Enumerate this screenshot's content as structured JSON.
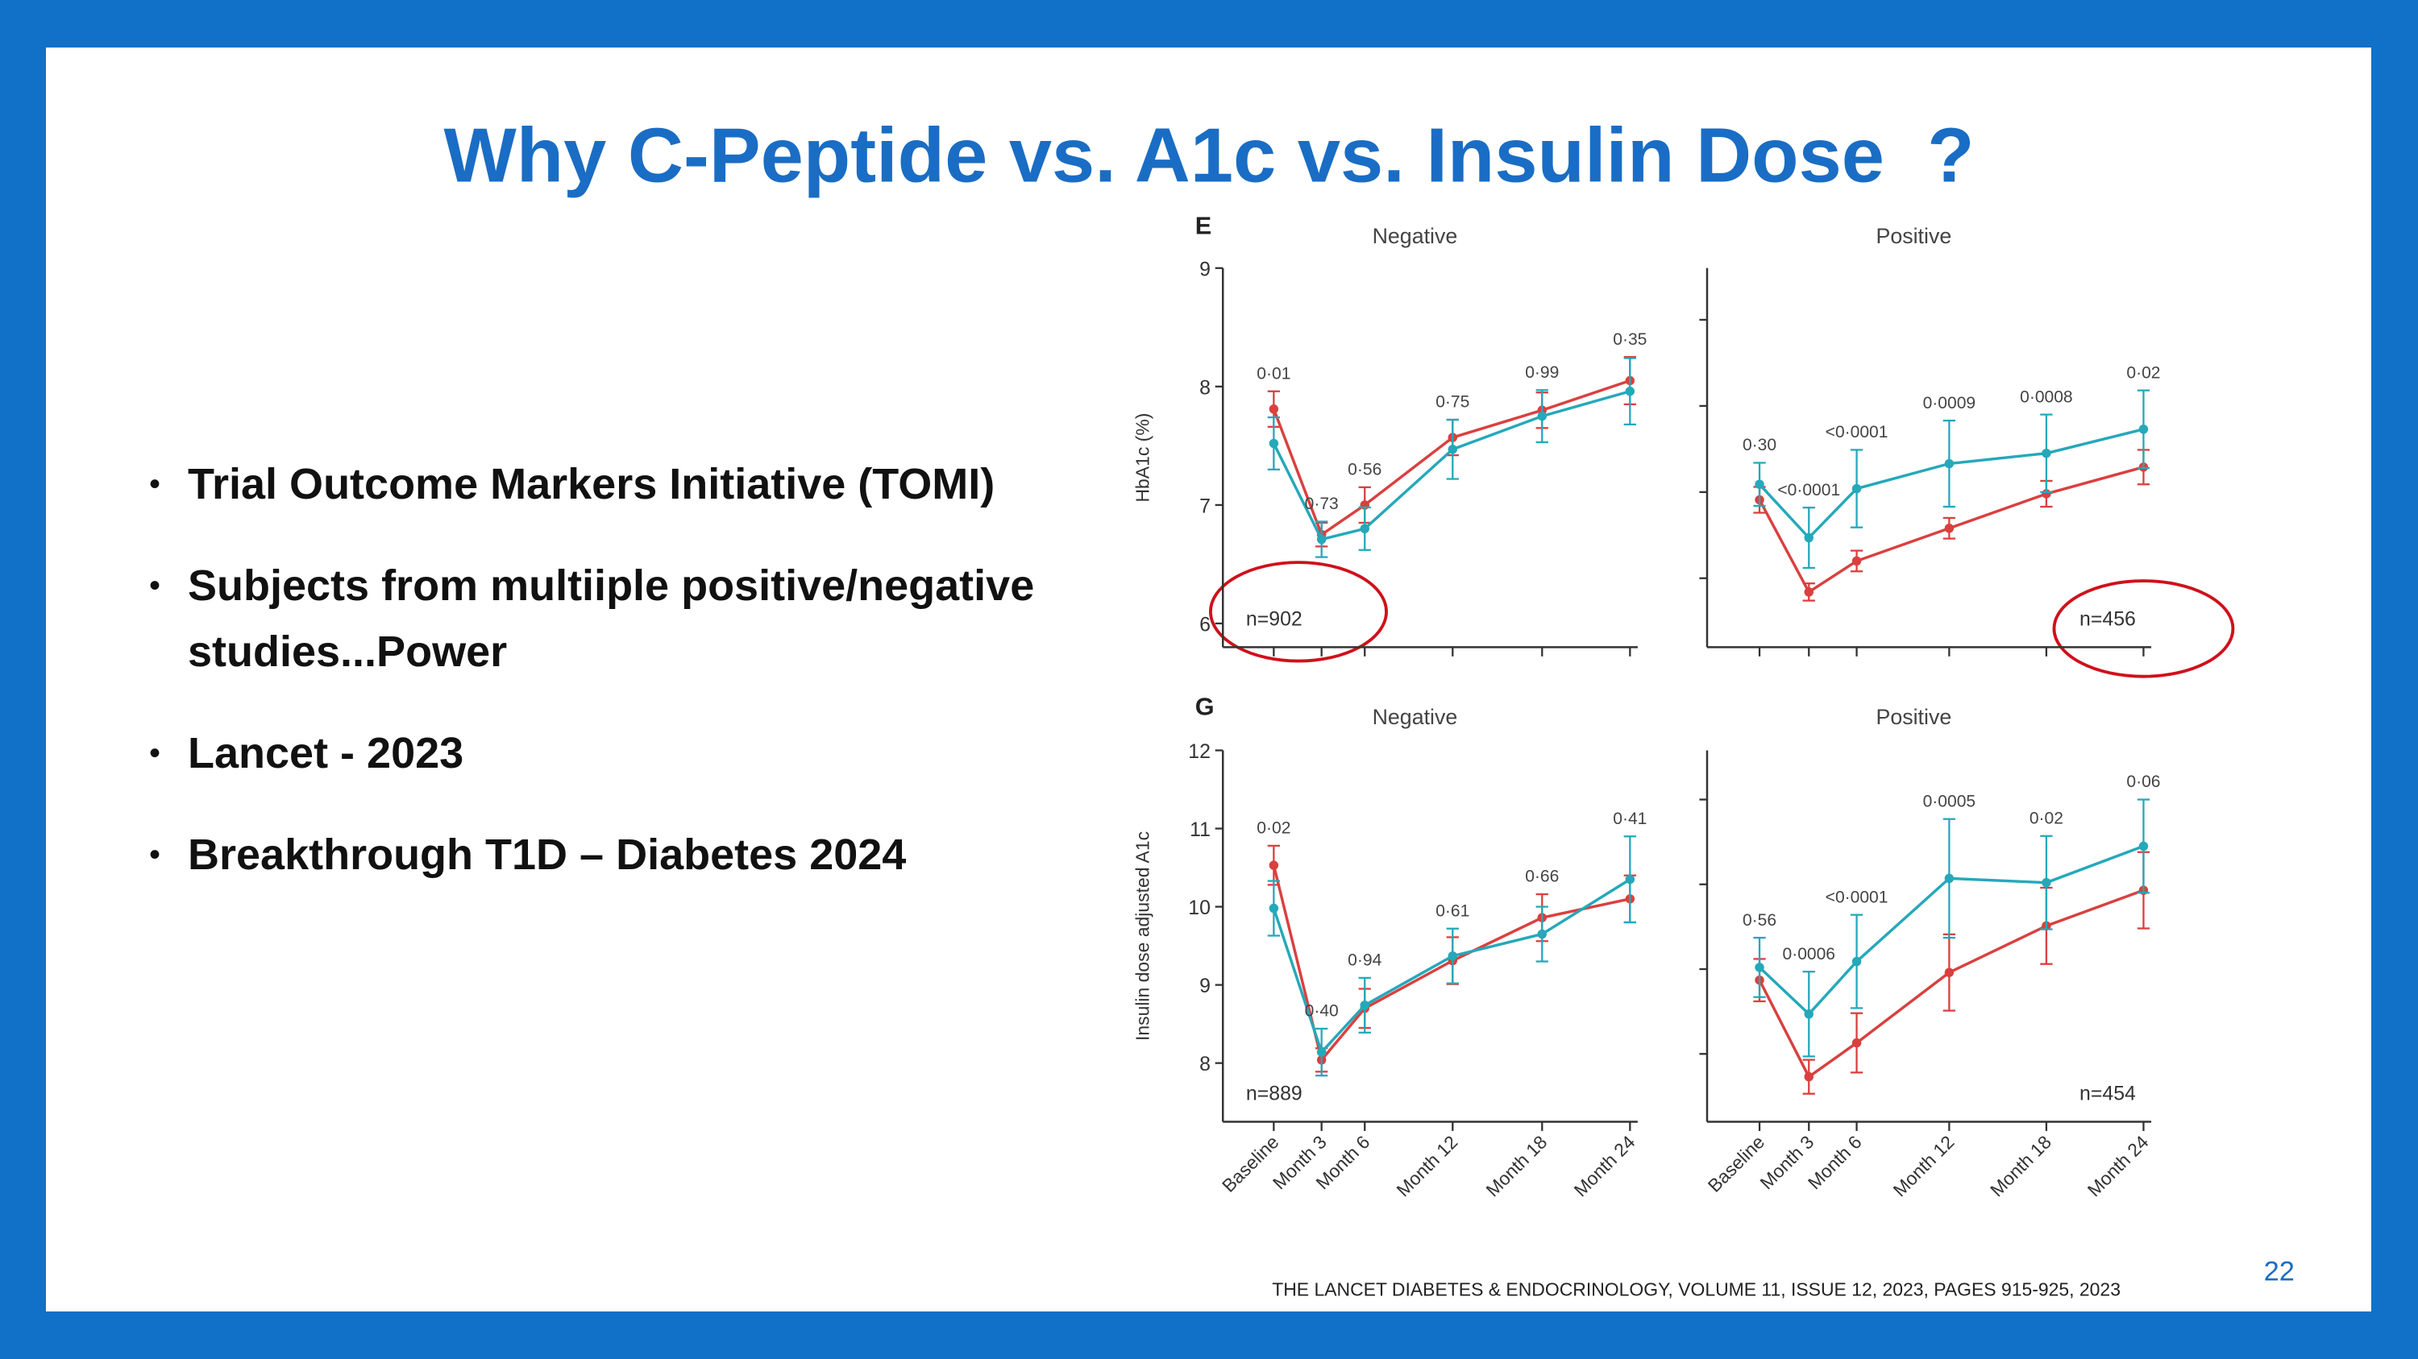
{
  "header": {
    "title": "Why C-Peptide vs. A1c vs. Insulin Dose  ?"
  },
  "bullets": [
    "Trial Outcome Markers Initiative (TOMI)",
    "Subjects from multiiple positive/negative studies...Power",
    "Lancet - 2023",
    "Breakthrough T1D – Diabetes 2024"
  ],
  "figure": {
    "categories": [
      "Baseline",
      "Month 3",
      "Month 6",
      "Month 12",
      "Month 18",
      "Month 24"
    ],
    "rows": [
      {
        "letter": "E",
        "y_label": "HbA1c (%)",
        "panels": [
          {
            "title": "Negative",
            "n_label": "n=902",
            "ylim": [
              5.8,
              9
            ],
            "yticks": [
              6,
              7,
              8,
              9
            ],
            "tick_labels": true,
            "p_values": [
              "0·01",
              "0·73",
              "0·56",
              "0·75",
              "0·99",
              "0·35"
            ],
            "series": [
              {
                "color": "#d9403f",
                "values": [
                  7.81,
                  6.75,
                  7.0,
                  7.57,
                  7.8,
                  8.05
                ],
                "errors": [
                  0.15,
                  0.1,
                  0.15,
                  0.15,
                  0.15,
                  0.2
                ]
              },
              {
                "color": "#25a8ba",
                "values": [
                  7.52,
                  6.71,
                  6.8,
                  7.47,
                  7.75,
                  7.96
                ],
                "errors": [
                  0.22,
                  0.15,
                  0.18,
                  0.25,
                  0.22,
                  0.28
                ]
              }
            ]
          },
          {
            "title": "Positive",
            "n_label": "n=456",
            "ylim": [
              4.2,
              8.6
            ],
            "yticks": [
              5,
              6,
              7,
              8
            ],
            "tick_labels": false,
            "p_values": [
              "0·30",
              "<0·0001",
              "<0·0001",
              "0·0009",
              "0·0008",
              "0·02"
            ],
            "series": [
              {
                "color": "#d9403f",
                "values": [
                  5.91,
                  4.84,
                  5.2,
                  5.58,
                  5.98,
                  6.29
                ],
                "errors": [
                  0.15,
                  0.1,
                  0.12,
                  0.12,
                  0.15,
                  0.2
                ]
              },
              {
                "color": "#25a8ba",
                "values": [
                  6.09,
                  5.47,
                  6.04,
                  6.33,
                  6.45,
                  6.73
                ],
                "errors": [
                  0.25,
                  0.35,
                  0.45,
                  0.5,
                  0.45,
                  0.45
                ]
              }
            ]
          }
        ]
      },
      {
        "letter": "G",
        "y_label": "Insulin dose adjusted A1c",
        "panels": [
          {
            "title": "Negative",
            "n_label": "n=889",
            "ylim": [
              7.25,
              12
            ],
            "yticks": [
              8,
              9,
              10,
              11,
              12
            ],
            "tick_labels": true,
            "p_values": [
              "0·02",
              "0·40",
              "0·94",
              "0·61",
              "0·66",
              "0·41"
            ],
            "series": [
              {
                "color": "#d9403f",
                "values": [
                  10.53,
                  8.04,
                  8.7,
                  9.31,
                  9.86,
                  10.1
                ],
                "errors": [
                  0.25,
                  0.15,
                  0.25,
                  0.3,
                  0.3,
                  0.3
                ]
              },
              {
                "color": "#25a8ba",
                "values": [
                  9.98,
                  8.14,
                  8.74,
                  9.37,
                  9.65,
                  10.35
                ],
                "errors": [
                  0.35,
                  0.3,
                  0.35,
                  0.35,
                  0.35,
                  0.55
                ]
              }
            ]
          },
          {
            "title": "Positive",
            "n_label": "n=454",
            "ylim": [
              7.2,
              11.58
            ],
            "yticks": [
              8,
              9,
              10,
              11
            ],
            "tick_labels": false,
            "p_values": [
              "0·56",
              "0·0006",
              "<0·0001",
              "0·0005",
              "0·02",
              "0·06"
            ],
            "series": [
              {
                "color": "#d9403f",
                "values": [
                  8.87,
                  7.73,
                  8.13,
                  8.96,
                  9.51,
                  9.93
                ],
                "errors": [
                  0.25,
                  0.2,
                  0.35,
                  0.45,
                  0.45,
                  0.45
                ]
              },
              {
                "color": "#25a8ba",
                "values": [
                  9.02,
                  8.47,
                  9.09,
                  10.07,
                  10.02,
                  10.45
                ],
                "errors": [
                  0.35,
                  0.5,
                  0.55,
                  0.7,
                  0.55,
                  0.55
                ]
              }
            ]
          }
        ]
      }
    ]
  },
  "footer": {
    "citation": "THE LANCET DIABETES & ENDOCRINOLOGY, VOLUME 11, ISSUE 12, 2023, PAGES 915-925, 2023",
    "page_number": "22"
  }
}
